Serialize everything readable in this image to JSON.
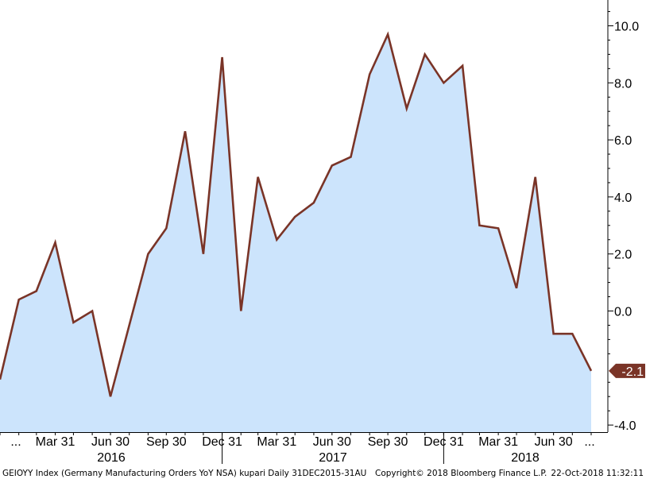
{
  "chart_data": {
    "type": "area",
    "x": [
      "2015-12-31",
      "2016-01-31",
      "2016-02-29",
      "2016-03-31",
      "2016-04-30",
      "2016-05-31",
      "2016-06-30",
      "2016-07-31",
      "2016-08-31",
      "2016-09-30",
      "2016-10-31",
      "2016-11-30",
      "2016-12-31",
      "2017-01-31",
      "2017-02-28",
      "2017-03-31",
      "2017-04-30",
      "2017-05-31",
      "2017-06-30",
      "2017-07-31",
      "2017-08-31",
      "2017-09-30",
      "2017-10-31",
      "2017-11-30",
      "2017-12-31",
      "2018-01-31",
      "2018-02-28",
      "2018-03-31",
      "2018-04-30",
      "2018-05-31",
      "2018-06-30",
      "2018-07-31",
      "2018-08-31"
    ],
    "series": [
      {
        "values": [
          -2.4,
          0.4,
          0.7,
          2.4,
          -0.4,
          0.0,
          -3.0,
          -0.5,
          2.0,
          2.9,
          6.3,
          2.0,
          8.9,
          0.0,
          4.7,
          2.5,
          3.3,
          3.8,
          5.1,
          5.4,
          8.3,
          9.7,
          7.1,
          9.0,
          8.0,
          8.6,
          3.0,
          2.9,
          0.8,
          4.7,
          -0.8,
          -0.8,
          -2.1
        ]
      }
    ],
    "ylim": [
      -4.4,
      11.0
    ],
    "yticks": [
      "10.0",
      "8.0",
      "6.0",
      "4.0",
      "2.0",
      "0.0",
      "-4.0"
    ],
    "ytick_values": [
      10,
      8,
      6,
      4,
      2,
      0,
      -4
    ],
    "xticks": [
      "...",
      "Mar 31",
      "Jun 30",
      "Sep 30",
      "Dec 31",
      "Mar 31",
      "Jun 30",
      "Sep 30",
      "Dec 31",
      "Mar 31",
      "Jun 30",
      "..."
    ],
    "xtick_dates": [
      "2015-12-31",
      "2016-03-31",
      "2016-06-30",
      "2016-09-30",
      "2016-12-31",
      "2017-03-31",
      "2017-06-30",
      "2017-09-30",
      "2017-12-31",
      "2018-03-31",
      "2018-06-30",
      "2018-08-31"
    ],
    "years": [
      "2016",
      "2017",
      "2018"
    ],
    "last_value_label": "-2.1",
    "y_axis_side": "right",
    "grid": false,
    "colors": {
      "line": "#7a3427",
      "fill": "#cce4fc",
      "label_bg": "#7a3427",
      "axis": "#000000"
    }
  },
  "footer": {
    "series_info": "GEIOYY Index (Germany Manufacturing Orders YoY NSA) kupari  Daily 31DEC2015-31AU",
    "copyright": "Copyright© 2018 Bloomberg Finance L.P.",
    "timestamp": "22-Oct-2018 11:32:11"
  }
}
